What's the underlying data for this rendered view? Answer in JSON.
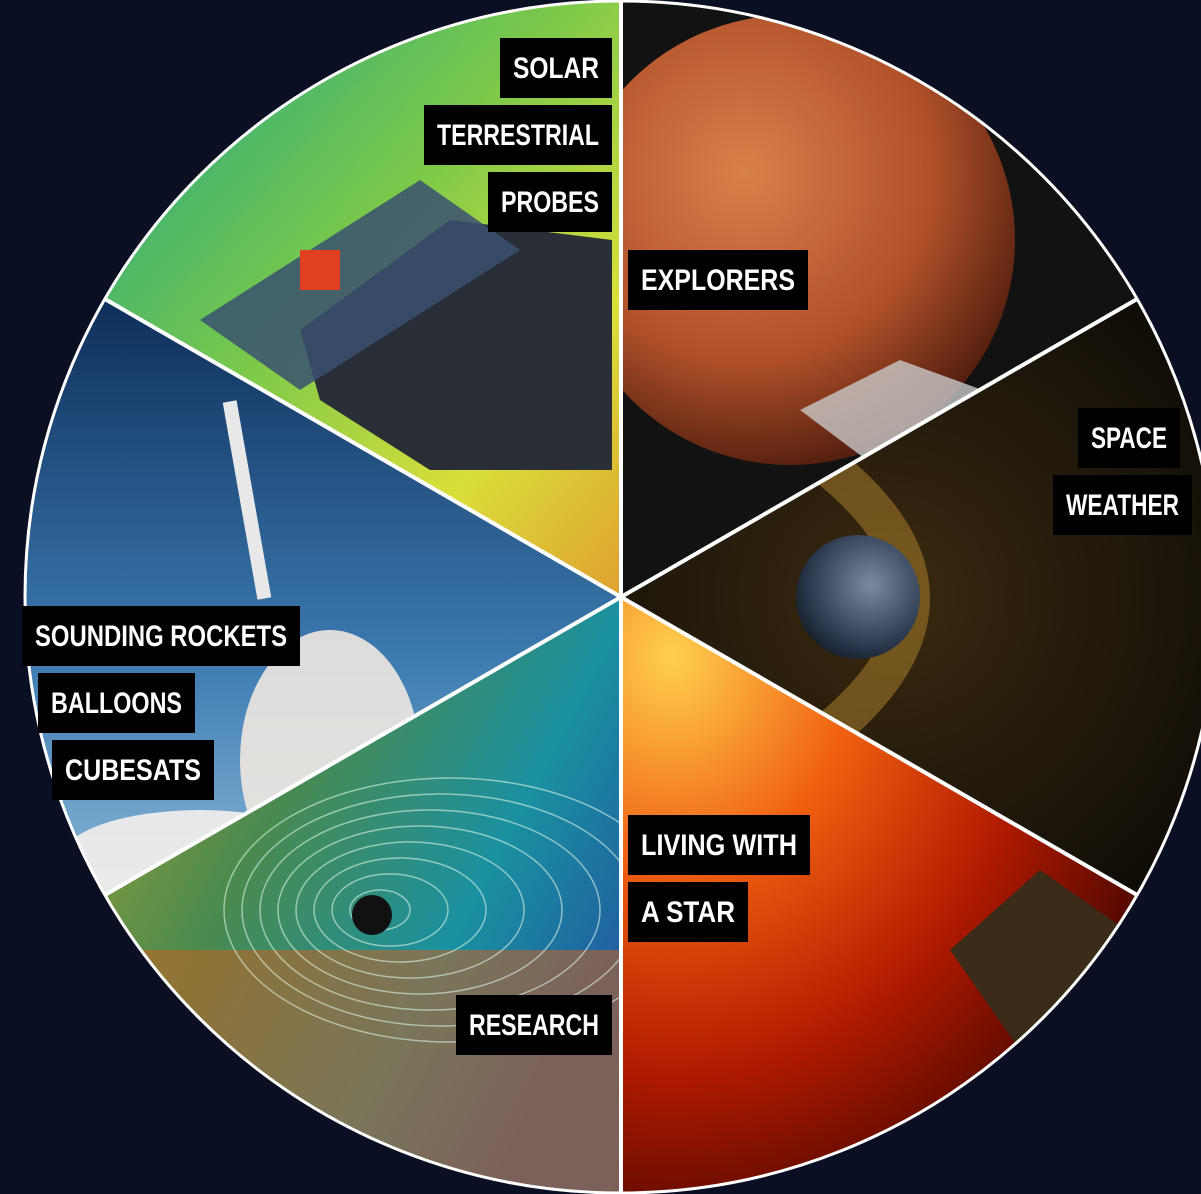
{
  "segments": [
    {
      "lines": [
        "SOLAR",
        "TERRESTRIAL",
        "PROBES"
      ]
    },
    {
      "lines": [
        "EXPLORERS"
      ]
    },
    {
      "lines": [
        "SPACE",
        "WEATHER"
      ]
    },
    {
      "lines": [
        "LIVING WITH",
        "A STAR"
      ]
    },
    {
      "lines": [
        "RESEARCH"
      ]
    },
    {
      "lines": [
        "SOUNDING ROCKETS",
        "BALLOONS",
        "CUBESATS"
      ]
    }
  ]
}
